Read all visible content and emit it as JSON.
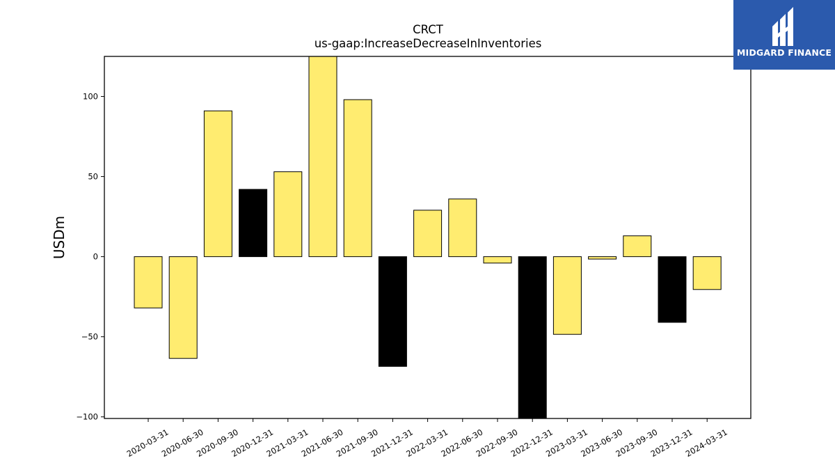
{
  "chart_data": {
    "type": "bar",
    "title": "CRCT",
    "subtitle": "us-gaap:IncreaseDecreaseInInventories",
    "xlabel": "",
    "ylabel": "USDm",
    "ylim": [
      -101,
      125
    ],
    "yticks": [
      -100,
      -50,
      0,
      50,
      100
    ],
    "yticklabels": [
      "−100",
      "−50",
      "0",
      "50",
      "100"
    ],
    "categories": [
      "2020-03-31",
      "2020-06-30",
      "2020-09-30",
      "2020-12-31",
      "2021-03-31",
      "2021-06-30",
      "2021-09-30",
      "2021-12-31",
      "2022-03-31",
      "2022-06-30",
      "2022-09-30",
      "2022-12-31",
      "2023-03-31",
      "2023-06-30",
      "2023-09-30",
      "2023-12-31",
      "2024-03-31"
    ],
    "values": [
      -32,
      -63.5,
      91,
      42,
      53,
      126,
      98,
      -68.5,
      29,
      36,
      -4,
      -101,
      -48.5,
      -1.5,
      13,
      -41,
      -20.5
    ],
    "bar_colors": [
      "#ffec70",
      "#ffec70",
      "#ffec70",
      "#000000",
      "#ffec70",
      "#ffec70",
      "#ffec70",
      "#000000",
      "#ffec70",
      "#ffec70",
      "#ffec70",
      "#000000",
      "#ffec70",
      "#ffec70",
      "#ffec70",
      "#000000",
      "#ffec70"
    ],
    "grid": false,
    "legend": "none"
  },
  "logo": {
    "text": "MIDGARD FINANCE",
    "color": "#2b5aad",
    "icon": "midgard-logo-icon"
  }
}
